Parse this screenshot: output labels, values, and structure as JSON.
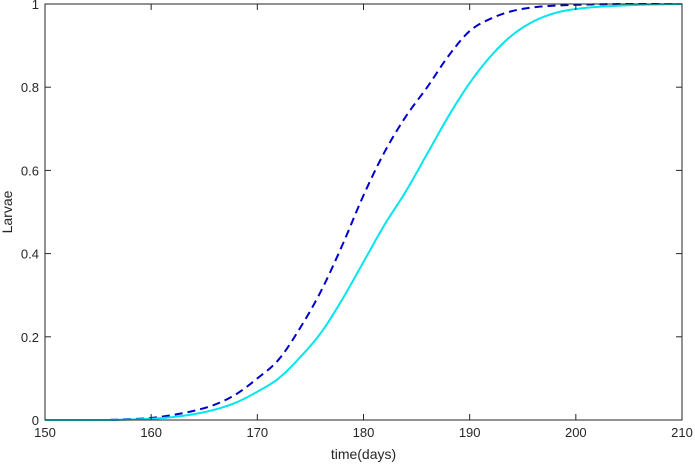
{
  "chart_data": {
    "type": "line",
    "title": "",
    "xlabel": "time(days)",
    "ylabel": "Larvae",
    "xlim": [
      150,
      210
    ],
    "ylim": [
      0,
      1
    ],
    "x_ticks": [
      150,
      160,
      170,
      180,
      190,
      200,
      210
    ],
    "y_ticks": [
      0,
      0.2,
      0.4,
      0.6,
      0.8,
      1
    ],
    "x_tick_labels": [
      "150",
      "160",
      "170",
      "180",
      "190",
      "200",
      "210"
    ],
    "y_tick_labels": [
      "0",
      "0.2",
      "0.4",
      "0.6",
      "0.8",
      "1"
    ],
    "grid": false,
    "legend": false,
    "series": [
      {
        "color": "#0000cc",
        "line_style": "dashed",
        "x": [
          150,
          155,
          158,
          160,
          162,
          164,
          166,
          168,
          170,
          172,
          174,
          176,
          178,
          180,
          182,
          184,
          186,
          188,
          190,
          192,
          194,
          196,
          198,
          200,
          205,
          210
        ],
        "y": [
          0,
          0.0,
          0.002,
          0.005,
          0.012,
          0.022,
          0.037,
          0.062,
          0.1,
          0.145,
          0.22,
          0.31,
          0.42,
          0.54,
          0.645,
          0.73,
          0.8,
          0.875,
          0.935,
          0.965,
          0.983,
          0.992,
          0.996,
          0.998,
          1.0,
          1.0
        ]
      },
      {
        "color": "#00e5ee",
        "line_style": "solid",
        "x": [
          150,
          155,
          158,
          160,
          162,
          164,
          166,
          168,
          170,
          172,
          174,
          176,
          178,
          180,
          182,
          184,
          186,
          188,
          190,
          192,
          194,
          196,
          198,
          200,
          205,
          210
        ],
        "y": [
          0,
          0.0,
          0.001,
          0.003,
          0.007,
          0.014,
          0.025,
          0.042,
          0.068,
          0.1,
          0.15,
          0.21,
          0.29,
          0.38,
          0.47,
          0.55,
          0.64,
          0.73,
          0.81,
          0.875,
          0.925,
          0.958,
          0.978,
          0.988,
          0.997,
          1.0
        ]
      }
    ]
  }
}
